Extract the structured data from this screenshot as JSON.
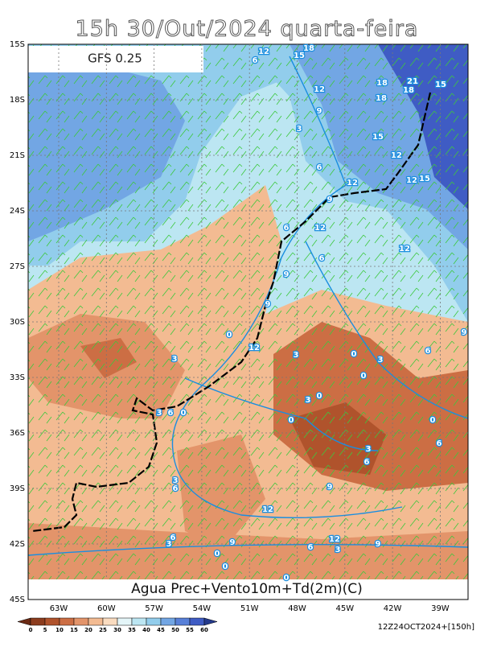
{
  "header": {
    "title": "15h 30/Out/2024 quarta-feira",
    "model": "GFS 0.25"
  },
  "map": {
    "lat_labels": [
      "15S",
      "18S",
      "21S",
      "24S",
      "27S",
      "30S",
      "33S",
      "36S",
      "39S",
      "42S",
      "45S"
    ],
    "lon_labels": [
      "63W",
      "60W",
      "57W",
      "54W",
      "51W",
      "48W",
      "45W",
      "42W",
      "39W"
    ],
    "contour_labels": [
      12,
      6,
      15,
      18,
      18,
      21,
      18,
      15,
      12,
      18,
      9,
      3,
      15,
      6,
      12,
      12,
      12,
      15,
      9,
      12,
      6,
      12,
      6,
      9,
      9,
      9,
      12,
      0,
      6,
      3,
      3,
      0,
      3,
      0,
      3,
      0,
      0,
      3,
      6,
      0,
      0,
      6,
      3,
      6,
      3,
      6,
      9,
      12,
      6,
      3,
      9,
      12,
      3,
      9,
      0,
      6,
      0,
      0
    ]
  },
  "footer": {
    "caption": "Agua Prec+Vento10m+Td(2m)(C)",
    "run": "12Z24OCT2024+[150h]"
  },
  "colorbar": {
    "ticks": [
      0,
      5,
      10,
      15,
      20,
      25,
      30,
      35,
      40,
      45,
      50,
      55,
      60
    ],
    "colors": [
      "#6b2a14",
      "#8c3c1e",
      "#b0532c",
      "#cc6e44",
      "#e3946a",
      "#f3bb92",
      "#fadcc0",
      "#e4f5f8",
      "#bce6f2",
      "#92cdec",
      "#72a6e4",
      "#5880d8",
      "#3f5cc4",
      "#243a8c"
    ]
  }
}
